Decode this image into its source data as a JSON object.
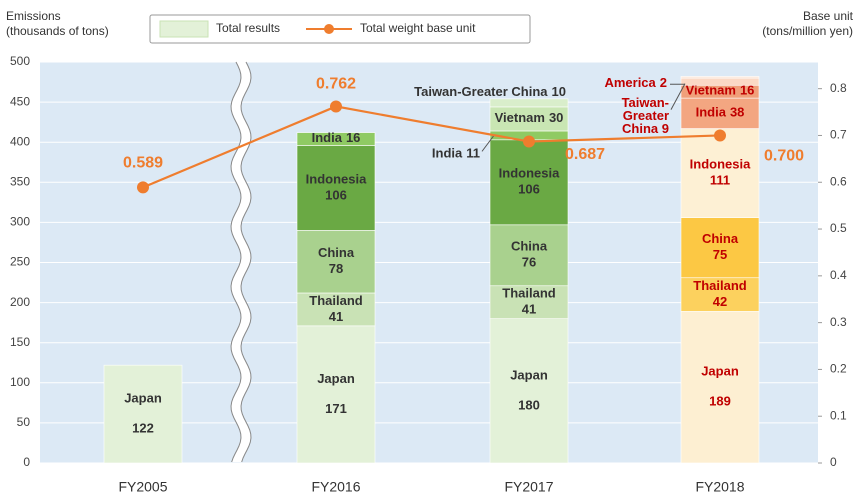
{
  "chart_data": {
    "type": "bar",
    "stacked": true,
    "categories": [
      "FY2005",
      "FY2016",
      "FY2017",
      "FY2018"
    ],
    "ylabel": "Emissions (thousands of tons)",
    "y2label": "Base unit (tons/million yen)",
    "ylim": [
      0,
      500
    ],
    "yticks": [
      0,
      50,
      100,
      150,
      200,
      250,
      300,
      350,
      400,
      450,
      500
    ],
    "y2lim": [
      0,
      0.857
    ],
    "y2ticks": [
      0,
      0.1,
      0.2,
      0.3,
      0.4,
      0.5,
      0.6,
      0.7,
      0.8
    ],
    "grid": true,
    "bar_legend": "Total results",
    "bar_legend_color": "#e3f1d8",
    "label_colors": [
      "#333333",
      "#333333",
      "#333333",
      "#c00000"
    ],
    "series": [
      {
        "name": "Japan",
        "values": [
          122,
          171,
          180,
          189
        ],
        "colors": [
          "#e3f1d8",
          "#e3f1d8",
          "#e3f1d8",
          "#fdefd2"
        ]
      },
      {
        "name": "Thailand",
        "values": [
          null,
          41,
          41,
          42
        ],
        "colors": [
          "#c9e2b5",
          "#c9e2b5",
          "#c9e2b5",
          "#fcd15e"
        ]
      },
      {
        "name": "China",
        "values": [
          null,
          78,
          76,
          75
        ],
        "colors": [
          "#a9d18e",
          "#a9d18e",
          "#a9d18e",
          "#fcc844"
        ]
      },
      {
        "name": "Indonesia",
        "values": [
          null,
          106,
          106,
          111
        ],
        "colors": [
          "#6aa944",
          "#6aa944",
          "#6aa944",
          "#fdf0d4"
        ]
      },
      {
        "name": "India",
        "values": [
          null,
          16,
          11,
          38
        ],
        "colors": [
          "#8fca63",
          "#8fca63",
          "#8fca63",
          "#f3a681"
        ]
      },
      {
        "name": "Vietnam",
        "values": [
          null,
          null,
          30,
          16
        ],
        "colors": [
          "#c9e6b3",
          "#c9e6b3",
          "#c9e6b3",
          "#f0a07a"
        ]
      },
      {
        "name": "Taiwan-Greater China",
        "values": [
          null,
          null,
          10,
          9
        ],
        "colors": [
          "#d9eecb",
          "#d9eecb",
          "#d9eecb",
          "#fbd9c5"
        ]
      },
      {
        "name": "America",
        "values": [
          null,
          null,
          null,
          2
        ],
        "colors": [
          "#fce5d6",
          "#fce5d6",
          "#fce5d6",
          "#fce5d6"
        ]
      },
      {
        "name": "Total weight base unit",
        "type": "line",
        "axis": "y2",
        "color": "#ef7d2e",
        "values": [
          0.589,
          0.762,
          0.687,
          0.7
        ],
        "value_labels": [
          "0.589",
          "0.762",
          "0.687",
          "0.700"
        ]
      }
    ]
  }
}
